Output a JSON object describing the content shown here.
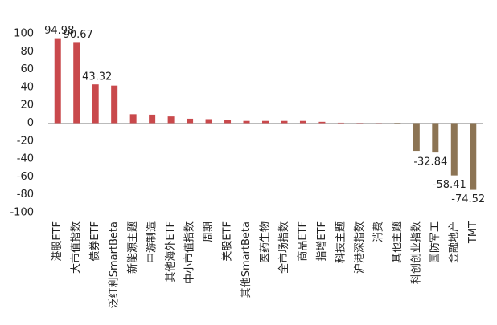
{
  "chart_data": {
    "type": "bar",
    "categories": [
      "港股ETF",
      "大市值指数",
      "债券ETF",
      "泛红利SmartBeta",
      "新能源主题",
      "中游制造",
      "其他海外ETF",
      "中小市值指数",
      "周期",
      "美股ETF",
      "其他SmartBeta",
      "医药生物",
      "全市场指数",
      "商品ETF",
      "指增ETF",
      "科技主题",
      "沪港深指数",
      "消费",
      "其他主题",
      "科创创业指数",
      "国防军工",
      "金融地产",
      "TMT"
    ],
    "values": [
      94.98,
      90.67,
      43.32,
      42,
      10,
      9.5,
      7.5,
      5,
      4.5,
      3.5,
      2.5,
      2.5,
      2.5,
      2.5,
      1.5,
      0.5,
      0.3,
      0.2,
      -1,
      -31,
      -32.84,
      -58.41,
      -74.52
    ],
    "value_labels": [
      "94.98",
      "90.67",
      "43.32",
      null,
      null,
      null,
      null,
      null,
      null,
      null,
      null,
      null,
      null,
      null,
      null,
      null,
      null,
      null,
      null,
      null,
      "-32.84",
      "-58.41",
      "-74.52"
    ],
    "color": "#c9494c",
    "negative_color": "#8c7454",
    "ylim": [
      -100,
      100
    ],
    "yticks": [
      -100,
      -80,
      -60,
      -40,
      -20,
      0,
      20,
      40,
      60,
      80,
      100
    ],
    "grid": false
  }
}
